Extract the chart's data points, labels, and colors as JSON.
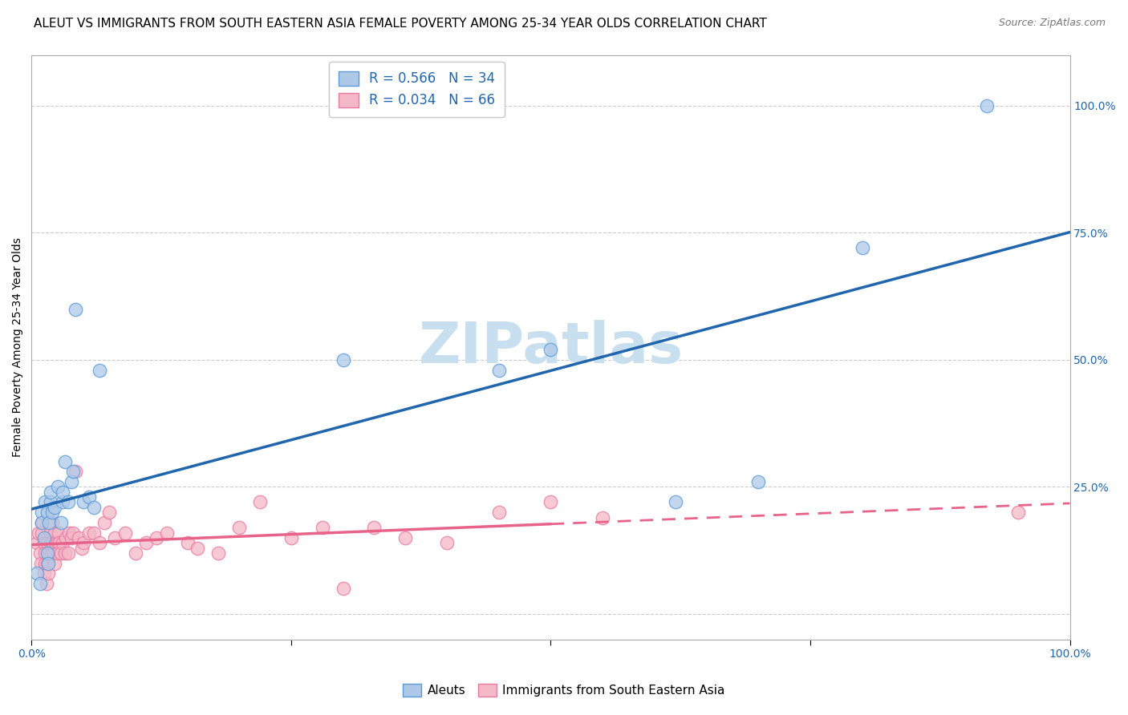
{
  "title": "ALEUT VS IMMIGRANTS FROM SOUTH EASTERN ASIA FEMALE POVERTY AMONG 25-34 YEAR OLDS CORRELATION CHART",
  "source": "Source: ZipAtlas.com",
  "ylabel": "Female Poverty Among 25-34 Year Olds",
  "xlim": [
    0,
    1
  ],
  "ylim": [
    -0.05,
    1.1
  ],
  "xticks": [
    0.0,
    0.25,
    0.5,
    0.75,
    1.0
  ],
  "xticklabels": [
    "0.0%",
    "",
    "",
    "",
    "100.0%"
  ],
  "ytick_positions": [
    0.0,
    0.25,
    0.5,
    0.75,
    1.0
  ],
  "ytick_labels_right": [
    "",
    "25.0%",
    "50.0%",
    "75.0%",
    "100.0%"
  ],
  "watermark": "ZIPatlas",
  "blue_color": "#aec9e8",
  "pink_color": "#f4b8c8",
  "blue_edge_color": "#5b9bd5",
  "pink_edge_color": "#e87aa0",
  "blue_line_color": "#2166ac",
  "pink_line_color": "#e8638a",
  "background_color": "#ffffff",
  "grid_color": "#cccccc",
  "title_fontsize": 11,
  "axis_label_fontsize": 10,
  "tick_fontsize": 10,
  "legend_fontsize": 12,
  "watermark_fontsize": 52,
  "watermark_color": "#c8dff0",
  "aleuts_x": [
    0.005,
    0.008,
    0.01,
    0.01,
    0.012,
    0.013,
    0.015,
    0.015,
    0.016,
    0.017,
    0.018,
    0.018,
    0.02,
    0.022,
    0.025,
    0.028,
    0.03,
    0.03,
    0.032,
    0.035,
    0.038,
    0.04,
    0.042,
    0.05,
    0.055,
    0.06,
    0.065,
    0.3,
    0.45,
    0.5,
    0.62,
    0.7,
    0.8,
    0.92
  ],
  "aleuts_y": [
    0.08,
    0.06,
    0.2,
    0.18,
    0.15,
    0.22,
    0.2,
    0.12,
    0.1,
    0.18,
    0.22,
    0.24,
    0.2,
    0.21,
    0.25,
    0.18,
    0.22,
    0.24,
    0.3,
    0.22,
    0.26,
    0.28,
    0.6,
    0.22,
    0.23,
    0.21,
    0.48,
    0.5,
    0.48,
    0.52,
    0.22,
    0.26,
    0.72,
    1.0
  ],
  "pink_x": [
    0.005,
    0.007,
    0.008,
    0.009,
    0.01,
    0.01,
    0.012,
    0.012,
    0.013,
    0.013,
    0.014,
    0.015,
    0.015,
    0.016,
    0.017,
    0.018,
    0.018,
    0.019,
    0.02,
    0.02,
    0.021,
    0.022,
    0.022,
    0.023,
    0.025,
    0.025,
    0.026,
    0.027,
    0.028,
    0.03,
    0.032,
    0.033,
    0.035,
    0.036,
    0.038,
    0.04,
    0.042,
    0.045,
    0.048,
    0.05,
    0.055,
    0.06,
    0.065,
    0.07,
    0.075,
    0.08,
    0.09,
    0.1,
    0.11,
    0.12,
    0.13,
    0.15,
    0.16,
    0.18,
    0.2,
    0.22,
    0.25,
    0.28,
    0.3,
    0.33,
    0.36,
    0.4,
    0.45,
    0.5,
    0.55,
    0.95
  ],
  "pink_y": [
    0.14,
    0.16,
    0.12,
    0.1,
    0.18,
    0.16,
    0.14,
    0.08,
    0.12,
    0.1,
    0.06,
    0.14,
    0.1,
    0.08,
    0.12,
    0.16,
    0.14,
    0.12,
    0.18,
    0.14,
    0.12,
    0.16,
    0.1,
    0.14,
    0.14,
    0.12,
    0.16,
    0.14,
    0.12,
    0.14,
    0.12,
    0.15,
    0.12,
    0.16,
    0.15,
    0.16,
    0.28,
    0.15,
    0.13,
    0.14,
    0.16,
    0.16,
    0.14,
    0.18,
    0.2,
    0.15,
    0.16,
    0.12,
    0.14,
    0.15,
    0.16,
    0.14,
    0.13,
    0.12,
    0.17,
    0.22,
    0.15,
    0.17,
    0.05,
    0.17,
    0.15,
    0.14,
    0.2,
    0.22,
    0.19,
    0.2
  ]
}
